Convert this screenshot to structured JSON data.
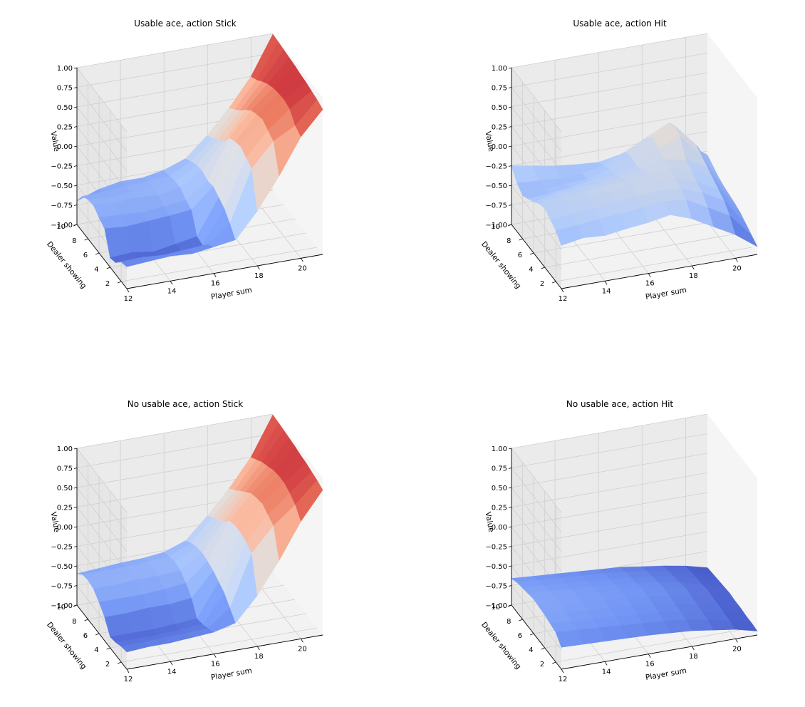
{
  "figure": {
    "colormap": "coolwarm",
    "colormap_stops": [
      "#3b4cc0",
      "#7396f5",
      "#b0cbfc",
      "#dddcdc",
      "#f6b79c",
      "#e7745b",
      "#b40426"
    ]
  },
  "chart_data": [
    {
      "type": "surface3d",
      "title": "Usable ace, action Stick",
      "xlabel": "Player sum",
      "ylabel": "Dealer showing",
      "zlabel": "Value",
      "x_ticks": [
        "12",
        "14",
        "16",
        "18",
        "20"
      ],
      "y_ticks": [
        "2",
        "4",
        "6",
        "8",
        "10"
      ],
      "z_ticks": [
        "−1.00",
        "−0.75",
        "−0.50",
        "−0.25",
        "0.00",
        "0.25",
        "0.50",
        "0.75",
        "1.00"
      ],
      "x": [
        12,
        13,
        14,
        15,
        16,
        17,
        18,
        19,
        20,
        21
      ],
      "y": [
        1,
        2,
        3,
        4,
        5,
        6,
        7,
        8,
        9,
        10
      ],
      "zlim": [
        -1,
        1
      ],
      "z": [
        [
          -0.72,
          -0.7,
          -0.68,
          -0.7,
          -0.66,
          -0.62,
          -0.3,
          0.1,
          0.55,
          0.85
        ],
        [
          -0.75,
          -0.74,
          -0.76,
          -0.74,
          -0.72,
          -0.5,
          0.15,
          0.45,
          0.6,
          0.88
        ],
        [
          -0.85,
          -0.84,
          -0.86,
          -0.84,
          -0.82,
          -0.4,
          0.2,
          0.5,
          0.72,
          0.9
        ],
        [
          -0.88,
          -0.86,
          -0.9,
          -0.85,
          -0.8,
          -0.35,
          0.25,
          0.55,
          0.75,
          0.92
        ],
        [
          -0.6,
          -0.62,
          -0.6,
          -0.58,
          -0.55,
          -0.3,
          0.22,
          0.52,
          0.74,
          0.93
        ],
        [
          -0.55,
          -0.56,
          -0.58,
          -0.55,
          -0.52,
          -0.32,
          0.18,
          0.48,
          0.72,
          0.95
        ],
        [
          -0.48,
          -0.5,
          -0.48,
          -0.5,
          -0.45,
          -0.28,
          0.05,
          0.4,
          0.68,
          0.96
        ],
        [
          -0.5,
          -0.52,
          -0.5,
          -0.48,
          -0.46,
          -0.3,
          -0.02,
          0.3,
          0.62,
          0.97
        ],
        [
          -0.55,
          -0.54,
          -0.52,
          -0.5,
          -0.48,
          -0.35,
          -0.1,
          0.22,
          0.55,
          0.98
        ],
        [
          -0.7,
          -0.6,
          -0.55,
          -0.55,
          -0.5,
          -0.4,
          -0.15,
          0.15,
          0.5,
          0.99
        ]
      ]
    },
    {
      "type": "surface3d",
      "title": "Usable ace, action Hit",
      "xlabel": "Player sum",
      "ylabel": "Dealer showing",
      "zlabel": "Value",
      "x_ticks": [
        "12",
        "14",
        "16",
        "18",
        "20"
      ],
      "y_ticks": [
        "2",
        "4",
        "6",
        "8",
        "10"
      ],
      "z_ticks": [
        "−1.00",
        "−0.75",
        "−0.50",
        "−0.25",
        "0.00",
        "0.25",
        "0.50",
        "0.75",
        "1.00"
      ],
      "x": [
        12,
        13,
        14,
        15,
        16,
        17,
        18,
        19,
        20,
        21
      ],
      "y": [
        1,
        2,
        3,
        4,
        5,
        6,
        7,
        8,
        9,
        10
      ],
      "zlim": [
        -1,
        1
      ],
      "z": [
        [
          -0.45,
          -0.4,
          -0.42,
          -0.38,
          -0.35,
          -0.3,
          -0.4,
          -0.55,
          -0.7,
          -0.9
        ],
        [
          -0.35,
          -0.33,
          -0.3,
          -0.28,
          -0.25,
          -0.22,
          -0.25,
          -0.4,
          -0.55,
          -0.85
        ],
        [
          -0.3,
          -0.28,
          -0.25,
          -0.22,
          -0.2,
          -0.18,
          -0.2,
          -0.3,
          -0.45,
          -0.8
        ],
        [
          -0.25,
          -0.22,
          -0.2,
          -0.18,
          -0.15,
          -0.12,
          -0.15,
          -0.25,
          -0.4,
          -0.75
        ],
        [
          -0.28,
          -0.25,
          -0.22,
          -0.2,
          -0.18,
          -0.15,
          -0.12,
          -0.2,
          -0.35,
          -0.72
        ],
        [
          -0.35,
          -0.3,
          -0.28,
          -0.25,
          -0.22,
          -0.18,
          -0.1,
          -0.15,
          -0.3,
          -0.7
        ],
        [
          -0.4,
          -0.38,
          -0.35,
          -0.3,
          -0.28,
          -0.22,
          -0.05,
          0.05,
          -0.25,
          -0.68
        ],
        [
          -0.45,
          -0.42,
          -0.4,
          -0.38,
          -0.3,
          -0.2,
          0.0,
          0.1,
          -0.2,
          -0.65
        ],
        [
          -0.38,
          -0.4,
          -0.42,
          -0.4,
          -0.35,
          -0.22,
          -0.08,
          0.05,
          -0.28,
          -0.6
        ],
        [
          -0.25,
          -0.3,
          -0.35,
          -0.38,
          -0.4,
          -0.35,
          -0.25,
          -0.1,
          -0.35,
          -0.55
        ]
      ]
    },
    {
      "type": "surface3d",
      "title": "No usable ace, action Stick",
      "xlabel": "Player sum",
      "ylabel": "Dealer showing",
      "zlabel": "Value",
      "x_ticks": [
        "12",
        "14",
        "16",
        "18",
        "20"
      ],
      "y_ticks": [
        "2",
        "4",
        "6",
        "8",
        "10"
      ],
      "z_ticks": [
        "−1.00",
        "−0.75",
        "−0.50",
        "−0.25",
        "0.00",
        "0.25",
        "0.50",
        "0.75",
        "1.00"
      ],
      "x": [
        12,
        13,
        14,
        15,
        16,
        17,
        18,
        19,
        20,
        21
      ],
      "y": [
        1,
        2,
        3,
        4,
        5,
        6,
        7,
        8,
        9,
        10
      ],
      "zlim": [
        -1,
        1
      ],
      "z": [
        [
          -0.78,
          -0.76,
          -0.76,
          -0.74,
          -0.72,
          -0.65,
          -0.35,
          0.05,
          0.5,
          0.85
        ],
        [
          -0.8,
          -0.8,
          -0.78,
          -0.78,
          -0.76,
          -0.55,
          0.1,
          0.4,
          0.62,
          0.88
        ],
        [
          -0.84,
          -0.84,
          -0.84,
          -0.82,
          -0.8,
          -0.45,
          0.15,
          0.45,
          0.68,
          0.9
        ],
        [
          -0.86,
          -0.86,
          -0.86,
          -0.84,
          -0.82,
          -0.4,
          0.18,
          0.5,
          0.72,
          0.92
        ],
        [
          -0.7,
          -0.7,
          -0.68,
          -0.68,
          -0.65,
          -0.35,
          0.18,
          0.48,
          0.72,
          0.93
        ],
        [
          -0.6,
          -0.6,
          -0.6,
          -0.58,
          -0.55,
          -0.32,
          0.15,
          0.45,
          0.7,
          0.95
        ],
        [
          -0.52,
          -0.52,
          -0.5,
          -0.5,
          -0.48,
          -0.3,
          0.05,
          0.38,
          0.66,
          0.96
        ],
        [
          -0.5,
          -0.5,
          -0.5,
          -0.48,
          -0.46,
          -0.32,
          -0.02,
          0.3,
          0.62,
          0.97
        ],
        [
          -0.52,
          -0.52,
          -0.52,
          -0.5,
          -0.48,
          -0.36,
          -0.08,
          0.22,
          0.56,
          0.98
        ],
        [
          -0.6,
          -0.58,
          -0.56,
          -0.55,
          -0.52,
          -0.42,
          -0.15,
          0.15,
          0.5,
          0.99
        ]
      ]
    },
    {
      "type": "surface3d",
      "title": "No usable ace, action Hit",
      "xlabel": "Player sum",
      "ylabel": "Dealer showing",
      "zlabel": "Value",
      "x_ticks": [
        "12",
        "14",
        "16",
        "18",
        "20"
      ],
      "y_ticks": [
        "2",
        "4",
        "6",
        "8",
        "10"
      ],
      "z_ticks": [
        "−1.00",
        "−0.75",
        "−0.50",
        "−0.25",
        "0.00",
        "0.25",
        "0.50",
        "0.75",
        "1.00"
      ],
      "x": [
        12,
        13,
        14,
        15,
        16,
        17,
        18,
        19,
        20,
        21
      ],
      "y": [
        1,
        2,
        3,
        4,
        5,
        6,
        7,
        8,
        9,
        10
      ],
      "zlim": [
        -1,
        1
      ],
      "z": [
        [
          -0.72,
          -0.73,
          -0.74,
          -0.75,
          -0.76,
          -0.78,
          -0.8,
          -0.84,
          -0.88,
          -0.95
        ],
        [
          -0.62,
          -0.64,
          -0.66,
          -0.68,
          -0.7,
          -0.72,
          -0.75,
          -0.8,
          -0.86,
          -0.94
        ],
        [
          -0.6,
          -0.62,
          -0.64,
          -0.66,
          -0.68,
          -0.7,
          -0.74,
          -0.79,
          -0.85,
          -0.94
        ],
        [
          -0.58,
          -0.6,
          -0.62,
          -0.64,
          -0.66,
          -0.69,
          -0.73,
          -0.78,
          -0.84,
          -0.93
        ],
        [
          -0.57,
          -0.59,
          -0.61,
          -0.63,
          -0.65,
          -0.68,
          -0.72,
          -0.77,
          -0.84,
          -0.93
        ],
        [
          -0.56,
          -0.58,
          -0.6,
          -0.62,
          -0.64,
          -0.67,
          -0.71,
          -0.76,
          -0.83,
          -0.92
        ],
        [
          -0.58,
          -0.6,
          -0.62,
          -0.64,
          -0.66,
          -0.69,
          -0.73,
          -0.78,
          -0.85,
          -0.93
        ],
        [
          -0.6,
          -0.62,
          -0.64,
          -0.66,
          -0.68,
          -0.71,
          -0.75,
          -0.8,
          -0.86,
          -0.94
        ],
        [
          -0.62,
          -0.64,
          -0.66,
          -0.68,
          -0.7,
          -0.73,
          -0.77,
          -0.82,
          -0.87,
          -0.95
        ],
        [
          -0.66,
          -0.68,
          -0.7,
          -0.72,
          -0.74,
          -0.76,
          -0.8,
          -0.84,
          -0.89,
          -0.96
        ]
      ]
    }
  ]
}
